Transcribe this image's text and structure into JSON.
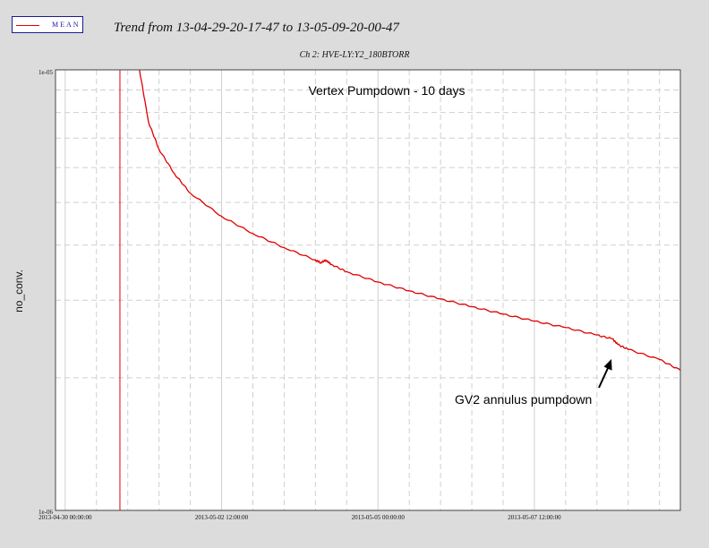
{
  "legend": {
    "label": "MEAN",
    "color": "#e00000"
  },
  "header": {
    "title": "Trend from 13-04-29-20-17-47 to 13-05-09-20-00-47",
    "subtitle": "Ch 2: HVE-LY:Y2_180BTORR"
  },
  "chart_data": {
    "type": "line",
    "title": "Trend from 13-04-29-20-17-47 to 13-05-09-20-00-47",
    "subtitle": "Ch 2: HVE-LY:Y2_180BTORR",
    "xlabel": "",
    "ylabel": "no_conv.",
    "yscale": "log",
    "ylim": [
      1e-06,
      1e-05
    ],
    "xlim": [
      "2013-04-29 20:17",
      "2013-05-09 20:00"
    ],
    "ytick_labels": [
      "1e-05",
      "1e-06"
    ],
    "xtick_labels": [
      "2013-04-30 00:00:00",
      "2013-05-02 12:00:00",
      "2013-05-05 00:00:00",
      "2013-05-07 12:00:00"
    ],
    "grid": true,
    "legend_position": "top-left",
    "annotations": [
      "Vertex Pumpdown - 10 days",
      "GV2 annulus pumpdown"
    ],
    "vertical_marker_x": "2013-04-30 21:00",
    "series": [
      {
        "name": "MEAN",
        "color": "#e00000",
        "points": [
          [
            "2013-04-30 21:00",
            1e-05
          ],
          [
            "2013-04-30 21:00",
            1e-06
          ],
          [
            "2013-05-01 04:30",
            1e-05
          ],
          [
            "2013-05-01 08:00",
            7.6e-06
          ],
          [
            "2013-05-01 12:00",
            6.6e-06
          ],
          [
            "2013-05-01 18:00",
            5.8e-06
          ],
          [
            "2013-05-02 00:00",
            5.25e-06
          ],
          [
            "2013-05-02 12:00",
            4.65e-06
          ],
          [
            "2013-05-03 00:00",
            4.25e-06
          ],
          [
            "2013-05-03 12:00",
            3.95e-06
          ],
          [
            "2013-05-04 00:00",
            3.7e-06
          ],
          [
            "2013-05-04 02:00",
            3.65e-06
          ],
          [
            "2013-05-04 04:00",
            3.7e-06
          ],
          [
            "2013-05-04 06:00",
            3.62e-06
          ],
          [
            "2013-05-04 12:00",
            3.48e-06
          ],
          [
            "2013-05-05 00:00",
            3.3e-06
          ],
          [
            "2013-05-05 12:00",
            3.15e-06
          ],
          [
            "2013-05-06 00:00",
            3.02e-06
          ],
          [
            "2013-05-06 12:00",
            2.9e-06
          ],
          [
            "2013-05-07 00:00",
            2.79e-06
          ],
          [
            "2013-05-07 12:00",
            2.69e-06
          ],
          [
            "2013-05-08 00:00",
            2.6e-06
          ],
          [
            "2013-05-08 12:00",
            2.5e-06
          ],
          [
            "2013-05-08 18:00",
            2.45e-06
          ],
          [
            "2013-05-08 20:00",
            2.38e-06
          ],
          [
            "2013-05-09 00:00",
            2.32e-06
          ],
          [
            "2013-05-09 12:00",
            2.2e-06
          ],
          [
            "2013-05-09 20:00",
            2.08e-06
          ]
        ]
      }
    ]
  }
}
